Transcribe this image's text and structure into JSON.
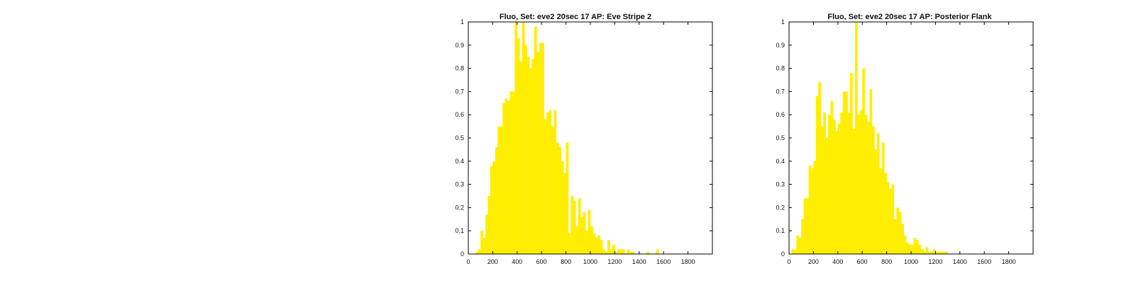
{
  "chart_data": [
    {
      "type": "bar",
      "title": "Fluo, Set: eve2 20sec 17 AP: Eve Stripe 2",
      "xlabel": "",
      "ylabel": "",
      "xlim": [
        0,
        2000
      ],
      "ylim": [
        0,
        1
      ],
      "xticks": [
        0,
        200,
        400,
        600,
        800,
        1000,
        1200,
        1400,
        1600,
        1800
      ],
      "yticks": [
        0,
        0.1,
        0.2,
        0.3,
        0.4,
        0.5,
        0.6,
        0.7,
        0.8,
        0.9,
        1
      ],
      "bar_color": "#ffee00",
      "bin_start": 60,
      "bin_width": 20,
      "values": [
        0.01,
        0.02,
        0.1,
        0.07,
        0.17,
        0.25,
        0.38,
        0.4,
        0.46,
        0.55,
        0.55,
        0.65,
        0.67,
        0.66,
        0.7,
        0.7,
        1.0,
        0.93,
        0.83,
        1.0,
        0.9,
        0.85,
        0.8,
        0.84,
        0.98,
        0.87,
        0.91,
        0.91,
        0.58,
        0.61,
        0.62,
        0.55,
        0.62,
        0.48,
        0.46,
        0.4,
        0.35,
        0.48,
        0.09,
        0.25,
        0.23,
        0.12,
        0.24,
        0.16,
        0.18,
        0.1,
        0.19,
        0.12,
        0.09,
        0.07,
        0.08,
        0.06,
        0.02,
        0.01,
        0.06,
        0.02,
        0.04,
        0.01,
        0.02,
        0.02,
        0.02,
        0,
        0.02,
        0.01,
        0.01,
        0,
        0,
        0,
        0,
        0,
        0.01,
        0,
        0,
        0,
        0.02,
        0,
        0,
        0,
        0,
        0
      ]
    },
    {
      "type": "bar",
      "title": "Fluo, Set: eve2 20sec 17 AP: Posterior Flank",
      "xlabel": "",
      "ylabel": "",
      "xlim": [
        0,
        2000
      ],
      "ylim": [
        0,
        1
      ],
      "xticks": [
        0,
        200,
        400,
        600,
        800,
        1000,
        1200,
        1400,
        1600,
        1800
      ],
      "yticks": [
        0,
        0.1,
        0.2,
        0.3,
        0.4,
        0.5,
        0.6,
        0.7,
        0.8,
        0.9,
        1
      ],
      "bar_color": "#ffee00",
      "bin_start": 20,
      "bin_width": 20,
      "values": [
        0.02,
        0.02,
        0.08,
        0.07,
        0.15,
        0.24,
        0.24,
        0.38,
        0.37,
        0.4,
        0.68,
        0.74,
        0.55,
        0.61,
        0.5,
        0.6,
        0.66,
        0.58,
        0.53,
        0.56,
        0.61,
        0.7,
        0.7,
        0.61,
        0.78,
        0.54,
        1.0,
        0.6,
        0.62,
        0.8,
        0.6,
        0.57,
        0.71,
        0.55,
        0.45,
        0.52,
        0.37,
        0.48,
        0.35,
        0.31,
        0.28,
        0.3,
        0.15,
        0.2,
        0.18,
        0.13,
        0.08,
        0.05,
        0.04,
        0.04,
        0.07,
        0.06,
        0.04,
        0.02,
        0.01,
        0.03,
        0.01,
        0.01,
        0.02,
        0.01,
        0.01,
        0.01,
        0.01,
        0.01
      ]
    }
  ]
}
